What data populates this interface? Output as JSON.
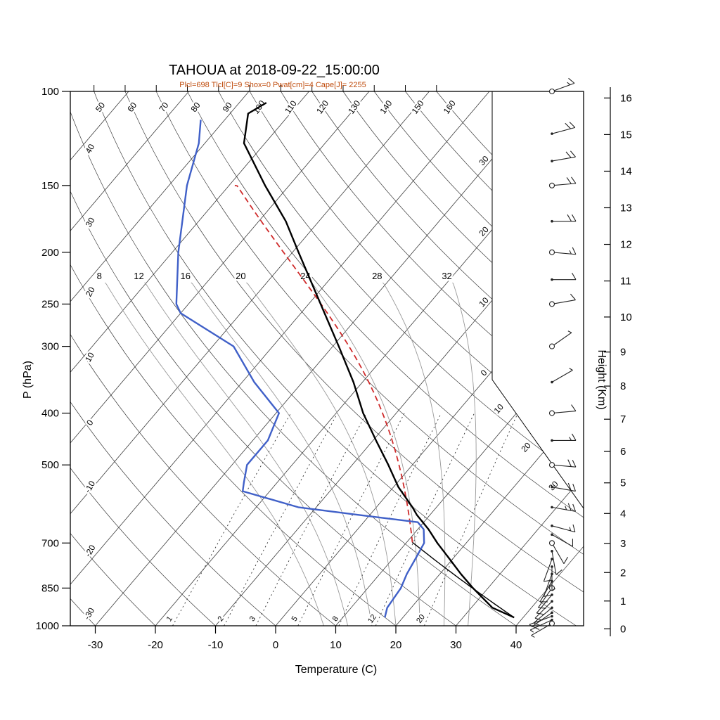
{
  "header": {
    "title": "TAHOUA at 2018-09-22_15:00:00",
    "subtitle": "Plcl=698 Tlcl[C]=9 Shox=0 Pwat[cm]=4 Cape[J]= 2255"
  },
  "station": {
    "name": "TAHOUA",
    "datetime": "2018-09-22_15:00:00"
  },
  "indices": {
    "Plcl": 698,
    "Tlcl_C": 9,
    "Shox": 0,
    "Pwat_cm": 4,
    "Cape_J": 2255
  },
  "chart_data": {
    "type": "skewt-log-p-sounding",
    "title": "TAHOUA at 2018-09-22_15:00:00",
    "axes": {
      "pressure": {
        "label": "P (hPa)",
        "scale": "log",
        "range": [
          100,
          1000
        ],
        "ticks": [
          100,
          150,
          200,
          250,
          300,
          400,
          500,
          700,
          850,
          1000
        ]
      },
      "temperature": {
        "label": "Temperature (C)",
        "ticks": [
          -30,
          -20,
          -10,
          0,
          10,
          20,
          30,
          40
        ]
      },
      "height": {
        "label": "Height (Km)",
        "ticks": [
          16,
          15,
          14,
          13,
          12,
          11,
          10,
          9,
          8,
          7,
          6,
          5,
          4,
          3,
          2,
          1,
          0
        ]
      }
    },
    "background": {
      "isotherms": {
        "min": -110,
        "max": 40,
        "step": 10,
        "right_edge_label_values": [
          -30,
          -20,
          -10,
          0,
          10,
          20,
          30
        ],
        "right_edge_label_text": [
          "30",
          "20",
          "10",
          "0",
          "10",
          "20",
          "30"
        ]
      },
      "dry_adiabats": {
        "top_labels": [
          50,
          60,
          70,
          80,
          90,
          100,
          110,
          120,
          130,
          140,
          150,
          160
        ],
        "left_labels": [
          40,
          30,
          20,
          10,
          0,
          -10,
          -20,
          -30
        ]
      },
      "moist_adiabats": {
        "labels": [
          8,
          12,
          16,
          20,
          24,
          28,
          32
        ]
      },
      "mixing_ratio": {
        "labels": [
          1,
          2,
          3,
          5,
          8,
          12,
          20
        ]
      }
    },
    "sounding": {
      "temperature_pT": [
        [
          965,
          38.5
        ],
        [
          925,
          33.5
        ],
        [
          850,
          27.5
        ],
        [
          800,
          23.5
        ],
        [
          750,
          19.5
        ],
        [
          700,
          15.2
        ],
        [
          660,
          11.8
        ],
        [
          620,
          7.8
        ],
        [
          600,
          6.0
        ],
        [
          550,
          0.8
        ],
        [
          500,
          -4.0
        ],
        [
          450,
          -9.5
        ],
        [
          400,
          -15.5
        ],
        [
          350,
          -21.5
        ],
        [
          300,
          -29.0
        ],
        [
          250,
          -38.0
        ],
        [
          200,
          -49.0
        ],
        [
          175,
          -55.5
        ],
        [
          150,
          -64.0
        ],
        [
          125,
          -73.5
        ],
        [
          110,
          -77.0
        ],
        [
          105,
          -75.5
        ]
      ],
      "dewpoint_pT": [
        [
          965,
          17.0
        ],
        [
          925,
          16.0
        ],
        [
          850,
          15.5
        ],
        [
          800,
          14.5
        ],
        [
          750,
          13.8
        ],
        [
          700,
          13.0
        ],
        [
          660,
          11.0
        ],
        [
          640,
          9.0
        ],
        [
          620,
          -2.0
        ],
        [
          600,
          -13.0
        ],
        [
          560,
          -24.5
        ],
        [
          540,
          -25.5
        ],
        [
          500,
          -27.5
        ],
        [
          450,
          -27.5
        ],
        [
          400,
          -29.5
        ],
        [
          350,
          -38.0
        ],
        [
          300,
          -46.5
        ],
        [
          260,
          -60.0
        ],
        [
          250,
          -62.0
        ],
        [
          200,
          -69.0
        ],
        [
          150,
          -77.0
        ],
        [
          125,
          -81.0
        ],
        [
          113,
          -84.0
        ]
      ]
    },
    "parcel": {
      "surface_p": 965,
      "surface_T": 38.5,
      "lcl_p": 698,
      "top_p": 150
    },
    "wind_barbs": [
      [
        990,
        240,
        5,
        "circle"
      ],
      [
        975,
        245,
        5,
        "dot"
      ],
      [
        960,
        250,
        5,
        "dot"
      ],
      [
        945,
        235,
        10,
        "dot"
      ],
      [
        925,
        230,
        10,
        "dot"
      ],
      [
        900,
        225,
        10,
        "dot"
      ],
      [
        875,
        220,
        10,
        "dot"
      ],
      [
        850,
        215,
        10,
        "circle"
      ],
      [
        825,
        210,
        10,
        "dot"
      ],
      [
        800,
        200,
        10,
        "dot"
      ],
      [
        775,
        180,
        5,
        "dot"
      ],
      [
        750,
        200,
        10,
        "dot"
      ],
      [
        725,
        170,
        10,
        "dot"
      ],
      [
        700,
        150,
        10,
        "circle"
      ],
      [
        675,
        120,
        10,
        "dot"
      ],
      [
        650,
        105,
        15,
        "dot"
      ],
      [
        600,
        100,
        25,
        "dot"
      ],
      [
        550,
        100,
        20,
        "dot"
      ],
      [
        500,
        95,
        20,
        "circle"
      ],
      [
        450,
        90,
        15,
        "dot"
      ],
      [
        400,
        85,
        10,
        "circle"
      ],
      [
        350,
        60,
        5,
        "dot"
      ],
      [
        300,
        55,
        5,
        "circle"
      ],
      [
        250,
        80,
        10,
        "circle"
      ],
      [
        225,
        90,
        10,
        "dot"
      ],
      [
        200,
        95,
        15,
        "circle"
      ],
      [
        175,
        90,
        20,
        "dot"
      ],
      [
        150,
        85,
        20,
        "circle"
      ],
      [
        135,
        80,
        20,
        "dot"
      ],
      [
        120,
        75,
        20,
        "dot"
      ],
      [
        100,
        70,
        15,
        "circle"
      ]
    ],
    "colors": {
      "temperature": "#000000",
      "dewpoint": "#4060c8",
      "parcel": "#cf2b2b",
      "subtitle": "#bf4a0a",
      "isotherm": "#3c3c3c",
      "dry_adiabat": "#3c3c3c",
      "moist_adiabat": "#999999",
      "mixing_ratio": "#333333"
    }
  }
}
